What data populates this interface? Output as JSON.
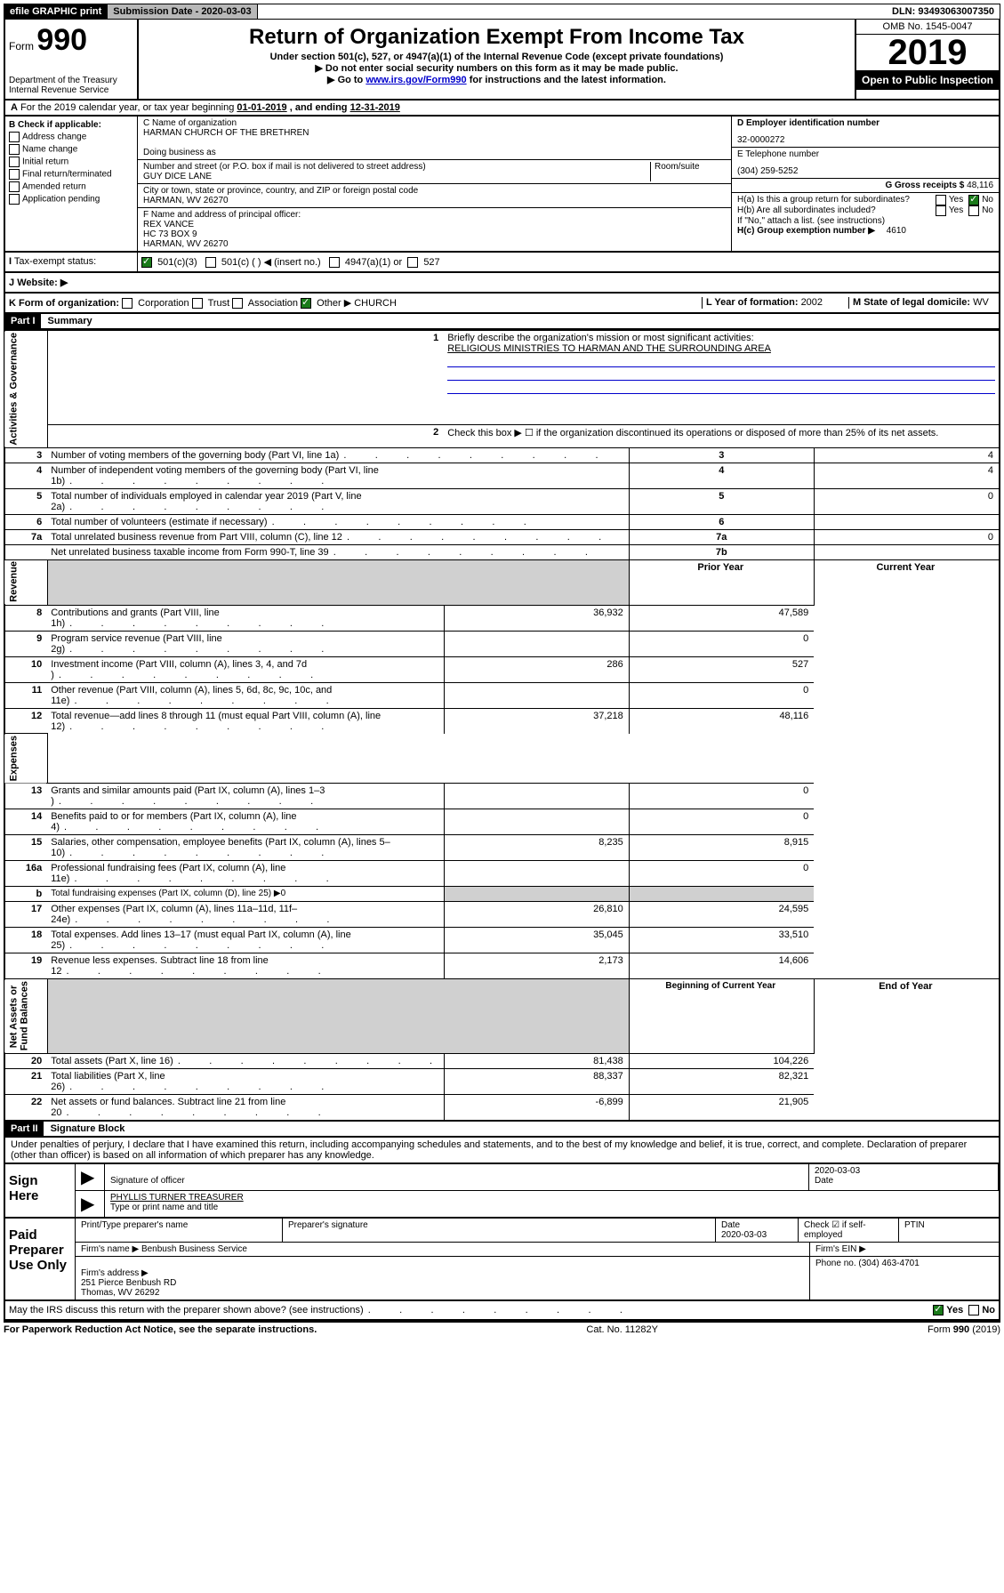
{
  "topbar": {
    "efile": "efile GRAPHIC print",
    "submission_label": "Submission Date - 2020-03-03",
    "dln": "DLN: 93493063007350"
  },
  "header": {
    "form_prefix": "Form",
    "form_num": "990",
    "dept": "Department of the Treasury\nInternal Revenue Service",
    "title": "Return of Organization Exempt From Income Tax",
    "subtitle": "Under section 501(c), 527, or 4947(a)(1) of the Internal Revenue Code (except private foundations)",
    "note1": "Do not enter social security numbers on this form as it may be made public.",
    "note2_pre": "Go to ",
    "note2_link": "www.irs.gov/Form990",
    "note2_post": " for instructions and the latest information.",
    "omb": "OMB No. 1545-0047",
    "year": "2019",
    "open": "Open to Public Inspection"
  },
  "section_a": {
    "text_pre": "For the 2019 calendar year, or tax year beginning ",
    "begin": "01-01-2019",
    "mid": " , and ending ",
    "end": "12-31-2019"
  },
  "col_b": {
    "label": "B Check if applicable:",
    "items": [
      "Address change",
      "Name change",
      "Initial return",
      "Final return/terminated",
      "Amended return",
      "Application pending"
    ]
  },
  "org": {
    "c_label": "C Name of organization",
    "name": "HARMAN CHURCH OF THE BRETHREN",
    "dba_label": "Doing business as",
    "addr_label": "Number and street (or P.O. box if mail is not delivered to street address)",
    "room_label": "Room/suite",
    "addr": "GUY DICE LANE",
    "city_label": "City or town, state or province, country, and ZIP or foreign postal code",
    "city": "HARMAN, WV  26270",
    "f_label": "F  Name and address of principal officer:",
    "f_name": "REX VANCE",
    "f_addr1": "HC 73 BOX 9",
    "f_addr2": "HARMAN, WV  26270"
  },
  "right": {
    "d_label": "D Employer identification number",
    "ein": "32-0000272",
    "e_label": "E Telephone number",
    "phone": "(304) 259-5252",
    "g_label": "G Gross receipts $ ",
    "g_val": "48,116",
    "ha_label": "H(a)  Is this a group return for subordinates?",
    "hb_label": "H(b)  Are all subordinates included?",
    "hb_note": "If \"No,\" attach a list. (see instructions)",
    "hc_label": "H(c)  Group exemption number ▶",
    "hc_val": "4610",
    "yes": "Yes",
    "no": "No"
  },
  "lines": {
    "i_label": "Tax-exempt status:",
    "i_501c3": "501(c)(3)",
    "i_501c": "501(c) (   ) ◀ (insert no.)",
    "i_4947": "4947(a)(1) or",
    "i_527": "527",
    "j_label": "Website: ▶",
    "k_label": "K Form of organization:",
    "k_corp": "Corporation",
    "k_trust": "Trust",
    "k_assoc": "Association",
    "k_other": "Other ▶",
    "k_other_val": "CHURCH",
    "l_label": "L Year of formation: ",
    "l_val": "2002",
    "m_label": "M State of legal domicile:",
    "m_val": "WV"
  },
  "part1": {
    "tag": "Part I",
    "title": "Summary",
    "q1": "Briefly describe the organization's mission or most significant activities:",
    "q1_val": "RELIGIOUS MINISTRIES TO HARMAN AND THE SURROUNDING AREA",
    "q2": "Check this box ▶ ☐  if the organization discontinued its operations or disposed of more than 25% of its net assets.",
    "rows": [
      {
        "n": "3",
        "t": "Number of voting members of the governing body (Part VI, line 1a)",
        "box": "3",
        "v": "4"
      },
      {
        "n": "4",
        "t": "Number of independent voting members of the governing body (Part VI, line 1b)",
        "box": "4",
        "v": "4"
      },
      {
        "n": "5",
        "t": "Total number of individuals employed in calendar year 2019 (Part V, line 2a)",
        "box": "5",
        "v": "0"
      },
      {
        "n": "6",
        "t": "Total number of volunteers (estimate if necessary)",
        "box": "6",
        "v": ""
      },
      {
        "n": "7a",
        "t": "Total unrelated business revenue from Part VIII, column (C), line 12",
        "box": "7a",
        "v": "0"
      },
      {
        "n": "",
        "t": "Net unrelated business taxable income from Form 990-T, line 39",
        "box": "7b",
        "v": ""
      }
    ],
    "hdr_prior": "Prior Year",
    "hdr_curr": "Current Year",
    "rev": [
      {
        "n": "8",
        "t": "Contributions and grants (Part VIII, line 1h)",
        "p": "36,932",
        "c": "47,589"
      },
      {
        "n": "9",
        "t": "Program service revenue (Part VIII, line 2g)",
        "p": "",
        "c": "0"
      },
      {
        "n": "10",
        "t": "Investment income (Part VIII, column (A), lines 3, 4, and 7d )",
        "p": "286",
        "c": "527"
      },
      {
        "n": "11",
        "t": "Other revenue (Part VIII, column (A), lines 5, 6d, 8c, 9c, 10c, and 11e)",
        "p": "",
        "c": "0"
      },
      {
        "n": "12",
        "t": "Total revenue—add lines 8 through 11 (must equal Part VIII, column (A), line 12)",
        "p": "37,218",
        "c": "48,116"
      }
    ],
    "exp": [
      {
        "n": "13",
        "t": "Grants and similar amounts paid (Part IX, column (A), lines 1–3 )",
        "p": "",
        "c": "0"
      },
      {
        "n": "14",
        "t": "Benefits paid to or for members (Part IX, column (A), line 4)",
        "p": "",
        "c": "0"
      },
      {
        "n": "15",
        "t": "Salaries, other compensation, employee benefits (Part IX, column (A), lines 5–10)",
        "p": "8,235",
        "c": "8,915"
      },
      {
        "n": "16a",
        "t": "Professional fundraising fees (Part IX, column (A), line 11e)",
        "p": "",
        "c": "0"
      },
      {
        "n": "b",
        "t": "Total fundraising expenses (Part IX, column (D), line 25) ▶0",
        "p": "",
        "c": "",
        "shade": true
      },
      {
        "n": "17",
        "t": "Other expenses (Part IX, column (A), lines 11a–11d, 11f–24e)",
        "p": "26,810",
        "c": "24,595"
      },
      {
        "n": "18",
        "t": "Total expenses. Add lines 13–17 (must equal Part IX, column (A), line 25)",
        "p": "35,045",
        "c": "33,510"
      },
      {
        "n": "19",
        "t": "Revenue less expenses. Subtract line 18 from line 12",
        "p": "2,173",
        "c": "14,606"
      }
    ],
    "hdr_begin": "Beginning of Current Year",
    "hdr_end": "End of Year",
    "net": [
      {
        "n": "20",
        "t": "Total assets (Part X, line 16)",
        "p": "81,438",
        "c": "104,226"
      },
      {
        "n": "21",
        "t": "Total liabilities (Part X, line 26)",
        "p": "88,337",
        "c": "82,321"
      },
      {
        "n": "22",
        "t": "Net assets or fund balances. Subtract line 21 from line 20",
        "p": "-6,899",
        "c": "21,905"
      }
    ],
    "vlabels": {
      "gov": "Activities & Governance",
      "rev": "Revenue",
      "exp": "Expenses",
      "net": "Net Assets or\nFund Balances"
    }
  },
  "part2": {
    "tag": "Part II",
    "title": "Signature Block",
    "perjury": "Under penalties of perjury, I declare that I have examined this return, including accompanying schedules and statements, and to the best of my knowledge and belief, it is true, correct, and complete. Declaration of preparer (other than officer) is based on all information of which preparer has any knowledge.",
    "sign_here": "Sign Here",
    "sig_officer": "Signature of officer",
    "sig_date": "2020-03-03",
    "date_label": "Date",
    "name_title": "PHYLLIS TURNER  TREASURER",
    "name_title_label": "Type or print name and title",
    "paid": "Paid Preparer Use Only",
    "prep_name_label": "Print/Type preparer's name",
    "prep_sig_label": "Preparer's signature",
    "prep_date": "2020-03-03",
    "check_self": "Check ☑ if self-employed",
    "ptin": "PTIN",
    "firm_name_label": "Firm's name    ▶",
    "firm_name": "Benbush Business Service",
    "firm_ein_label": "Firm's EIN ▶",
    "firm_addr_label": "Firm's address ▶",
    "firm_addr": "251 Pierce Benbush RD\nThomas, WV  26292",
    "firm_phone_label": "Phone no. ",
    "firm_phone": "(304) 463-4701",
    "discuss": "May the IRS discuss this return with the preparer shown above? (see instructions)"
  },
  "footer": {
    "left": "For Paperwork Reduction Act Notice, see the separate instructions.",
    "mid": "Cat. No. 11282Y",
    "right": "Form 990 (2019)"
  }
}
